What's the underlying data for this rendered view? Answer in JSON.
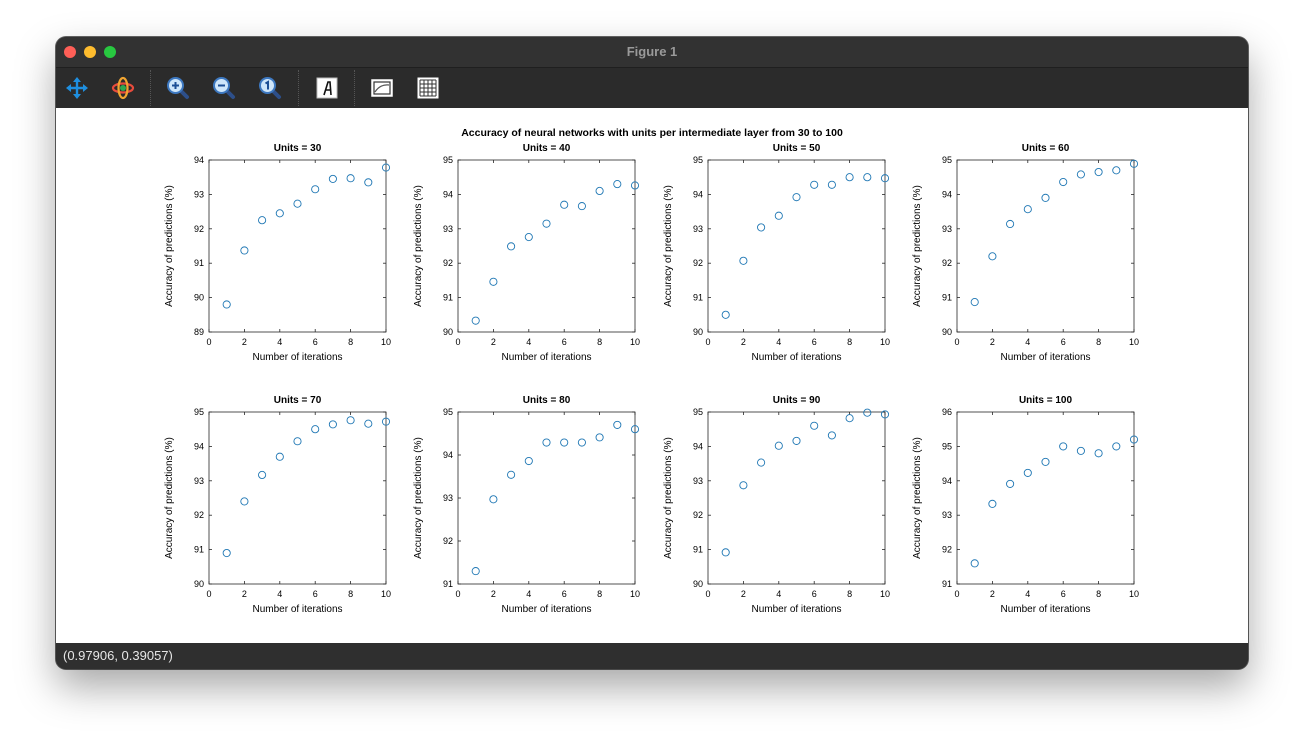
{
  "window": {
    "title": "Figure 1"
  },
  "toolbar": {
    "tools": [
      {
        "name": "pan-tool",
        "icon": "pan-arrows-icon"
      },
      {
        "name": "rotate-tool",
        "icon": "rotate-orbit-icon"
      },
      {
        "name": "zoom-in-tool",
        "icon": "zoom-in-icon"
      },
      {
        "name": "zoom-out-tool",
        "icon": "zoom-out-icon"
      },
      {
        "name": "zoom-reset-tool",
        "icon": "zoom-reset-icon"
      },
      {
        "name": "text-tool",
        "icon": "text-icon"
      },
      {
        "name": "axes-tool",
        "icon": "axes-icon"
      },
      {
        "name": "grid-tool",
        "icon": "grid-icon"
      }
    ]
  },
  "status": {
    "coordinates": "(0.97906, 0.39057)"
  },
  "colors": {
    "marker": "#1f77b4",
    "toolbar_icon_blue": "#1e8fe0"
  },
  "figure": {
    "suptitle": "Accuracy of neural networks with units per intermediate layer from 30 to 100"
  },
  "chart_data": [
    {
      "type": "scatter",
      "title": "Units = 30",
      "xlabel": "Number of iterations",
      "ylabel": "Accuracy of predictions (%)",
      "xlim": [
        0,
        10
      ],
      "ylim": [
        89,
        94
      ],
      "xticks": [
        0,
        2,
        4,
        6,
        8,
        10
      ],
      "yticks": [
        89,
        90,
        91,
        92,
        93,
        94
      ],
      "x": [
        1,
        2,
        3,
        4,
        5,
        6,
        7,
        8,
        9,
        10
      ],
      "y": [
        89.8,
        91.37,
        92.25,
        92.45,
        92.73,
        93.15,
        93.45,
        93.47,
        93.35,
        93.78
      ]
    },
    {
      "type": "scatter",
      "title": "Units = 40",
      "xlabel": "Number of iterations",
      "ylabel": "Accuracy of predictions (%)",
      "xlim": [
        0,
        10
      ],
      "ylim": [
        90,
        95
      ],
      "xticks": [
        0,
        2,
        4,
        6,
        8,
        10
      ],
      "yticks": [
        90,
        91,
        92,
        93,
        94,
        95
      ],
      "x": [
        1,
        2,
        3,
        4,
        5,
        6,
        7,
        8,
        9,
        10
      ],
      "y": [
        90.33,
        91.46,
        92.49,
        92.76,
        93.15,
        93.7,
        93.66,
        94.1,
        94.3,
        94.26
      ]
    },
    {
      "type": "scatter",
      "title": "Units = 50",
      "xlabel": "Number of iterations",
      "ylabel": "Accuracy of predictions (%)",
      "xlim": [
        0,
        10
      ],
      "ylim": [
        90,
        95
      ],
      "xticks": [
        0,
        2,
        4,
        6,
        8,
        10
      ],
      "yticks": [
        90,
        91,
        92,
        93,
        94,
        95
      ],
      "x": [
        1,
        2,
        3,
        4,
        5,
        6,
        7,
        8,
        9,
        10
      ],
      "y": [
        90.5,
        92.07,
        93.04,
        93.38,
        93.92,
        94.28,
        94.28,
        94.5,
        94.5,
        94.47
      ]
    },
    {
      "type": "scatter",
      "title": "Units = 60",
      "xlabel": "Number of iterations",
      "ylabel": "Accuracy of predictions (%)",
      "xlim": [
        0,
        10
      ],
      "ylim": [
        90,
        95
      ],
      "xticks": [
        0,
        2,
        4,
        6,
        8,
        10
      ],
      "yticks": [
        90,
        91,
        92,
        93,
        94,
        95
      ],
      "x": [
        1,
        2,
        3,
        4,
        5,
        6,
        7,
        8,
        9,
        10
      ],
      "y": [
        90.87,
        92.2,
        93.14,
        93.57,
        93.9,
        94.36,
        94.58,
        94.65,
        94.7,
        94.89
      ]
    },
    {
      "type": "scatter",
      "title": "Units = 70",
      "xlabel": "Number of iterations",
      "ylabel": "Accuracy of predictions (%)",
      "xlim": [
        0,
        10
      ],
      "ylim": [
        90,
        95
      ],
      "xticks": [
        0,
        2,
        4,
        6,
        8,
        10
      ],
      "yticks": [
        90,
        91,
        92,
        93,
        94,
        95
      ],
      "x": [
        1,
        2,
        3,
        4,
        5,
        6,
        7,
        8,
        9,
        10
      ],
      "y": [
        90.9,
        92.4,
        93.17,
        93.7,
        94.15,
        94.5,
        94.64,
        94.76,
        94.66,
        94.72
      ]
    },
    {
      "type": "scatter",
      "title": "Units = 80",
      "xlabel": "Number of iterations",
      "ylabel": "Accuracy of predictions (%)",
      "xlim": [
        0,
        10
      ],
      "ylim": [
        91,
        95
      ],
      "xticks": [
        0,
        2,
        4,
        6,
        8,
        10
      ],
      "yticks": [
        91,
        92,
        93,
        94,
        95
      ],
      "x": [
        1,
        2,
        3,
        4,
        5,
        6,
        7,
        8,
        9,
        10
      ],
      "y": [
        91.3,
        92.97,
        93.54,
        93.86,
        94.29,
        94.29,
        94.29,
        94.41,
        94.7,
        94.6
      ]
    },
    {
      "type": "scatter",
      "title": "Units = 90",
      "xlabel": "Number of iterations",
      "ylabel": "Accuracy of predictions (%)",
      "xlim": [
        0,
        10
      ],
      "ylim": [
        90,
        95
      ],
      "xticks": [
        0,
        2,
        4,
        6,
        8,
        10
      ],
      "yticks": [
        90,
        91,
        92,
        93,
        94,
        95
      ],
      "x": [
        1,
        2,
        3,
        4,
        5,
        6,
        7,
        8,
        9,
        10
      ],
      "y": [
        90.92,
        92.87,
        93.53,
        94.02,
        94.16,
        94.6,
        94.32,
        94.82,
        94.98,
        94.93
      ]
    },
    {
      "type": "scatter",
      "title": "Units = 100",
      "xlabel": "Number of iterations",
      "ylabel": "Accuracy of predictions (%)",
      "xlim": [
        0,
        10
      ],
      "ylim": [
        91,
        96
      ],
      "xticks": [
        0,
        2,
        4,
        6,
        8,
        10
      ],
      "yticks": [
        91,
        92,
        93,
        94,
        95,
        96
      ],
      "x": [
        1,
        2,
        3,
        4,
        5,
        6,
        7,
        8,
        9,
        10
      ],
      "y": [
        91.6,
        93.33,
        93.91,
        94.23,
        94.55,
        95.0,
        94.87,
        94.8,
        95.0,
        95.2
      ]
    }
  ]
}
